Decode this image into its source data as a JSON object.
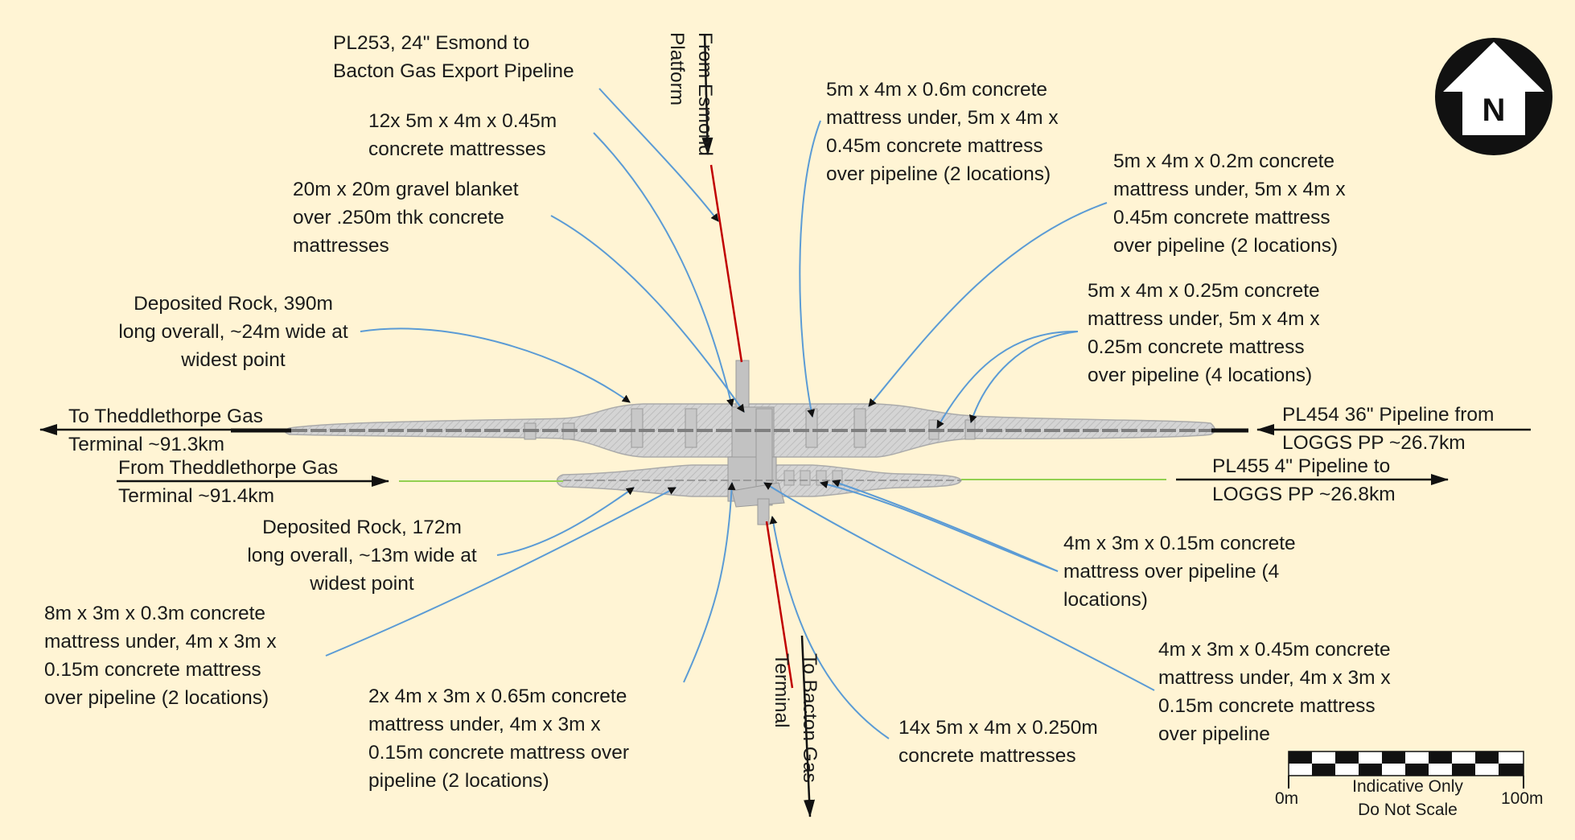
{
  "labels": {
    "pl253": "PL253, 24\" Esmond to\nBacton Gas Export Pipeline",
    "from_esmond": "From Esmond\nPlatform",
    "mat_12x": "12x 5m x 4m x 0.45m\nconcrete mattresses",
    "gravel": "20m x 20m gravel blanket\nover .250m thk concrete\nmattresses",
    "rock_390": "Deposited Rock, 390m\nlong overall, ~24m wide at\nwidest point",
    "mat_06_under": "5m x 4m x 0.6m concrete\nmattress under, 5m x 4m x\n0.45m concrete mattress\nover pipeline (2 locations)",
    "mat_02_under": "5m x 4m x 0.2m concrete\nmattress under, 5m x 4m x\n0.45m concrete mattress\nover pipeline (2 locations)",
    "mat_025_under": "5m x 4m x 0.25m concrete\nmattress under, 5m x 4m x\n0.25m concrete mattress\nover pipeline (4 locations)",
    "to_theddlethorpe": "To Theddlethorpe Gas\nTerminal ~91.3km",
    "from_theddlethorpe": "From Theddlethorpe Gas\nTerminal ~91.4km",
    "pl454": "PL454 36\" Pipeline from\nLOGGS PP ~26.7km",
    "pl455": "PL455 4\" Pipeline to\nLOGGS PP ~26.8km",
    "rock_172": "Deposited Rock, 172m\nlong overall, ~13m wide at\nwidest point",
    "mat_8x3": "8m x 3m x 0.3m concrete\nmattress under, 4m x 3m x\n0.15m concrete mattress\nover pipeline (2 locations)",
    "mat_4x3_015": "4m x 3m x 0.15m concrete\nmattress over pipeline (4\nlocations)",
    "mat_2x": "2x 4m x 3m x 0.65m concrete\nmattress under, 4m x 3m x\n0.15m concrete mattress over\npipeline (2 locations)",
    "to_bacton": "To Bacton Gas\nTerminal",
    "mat_14x": "14x 5m x 4m x 0.250m\nconcrete mattresses",
    "mat_4x3_045": "4m x 3m x 0.45m concrete\nmattress under, 4m x 3m x\n0.15m concrete mattress\nover pipeline"
  },
  "north_arrow": {
    "label": "N"
  },
  "scale_bar": {
    "start_label": "0m",
    "end_label": "100m",
    "note": "Indicative Only\nDo Not Scale"
  },
  "colors": {
    "background": "#fff4d4",
    "leader": "#5b9bd5",
    "pipeline_export": "#c00000",
    "pipeline_4in": "#92d050",
    "deposited_rock": "#d0d0d0"
  }
}
